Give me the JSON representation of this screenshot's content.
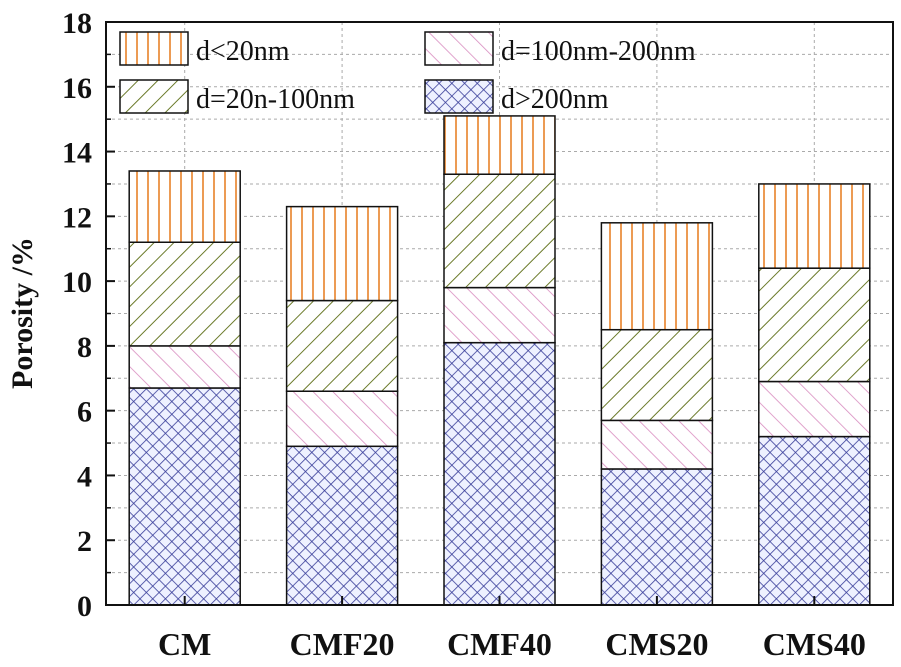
{
  "chart_data": {
    "type": "bar",
    "stacked": true,
    "categories": [
      "CM",
      "CMF20",
      "CMF40",
      "CMS20",
      "CMS40"
    ],
    "series": [
      {
        "name": "d>200nm",
        "values": [
          6.7,
          4.9,
          8.1,
          4.2,
          5.2
        ],
        "color": "#3a3f9a",
        "pattern": "crosshatch"
      },
      {
        "name": "d=100nm-200nm",
        "values": [
          1.3,
          1.7,
          1.7,
          1.5,
          1.7
        ],
        "color": "#d98cc0",
        "pattern": "forward-diagonal"
      },
      {
        "name": "d=20n-100nm",
        "values": [
          3.2,
          2.8,
          3.5,
          2.8,
          3.5
        ],
        "color": "#6b7a2a",
        "pattern": "back-diagonal"
      },
      {
        "name": "d<20nm",
        "values": [
          2.2,
          2.9,
          1.8,
          3.3,
          2.6
        ],
        "color": "#e8822a",
        "pattern": "vertical"
      }
    ],
    "title": "",
    "xlabel": "",
    "ylabel": "Porosity /%",
    "ylim": [
      0,
      18
    ],
    "yticks": [
      0,
      2,
      4,
      6,
      8,
      10,
      12,
      14,
      16,
      18
    ],
    "grid": true,
    "legend_position": "top-left"
  }
}
